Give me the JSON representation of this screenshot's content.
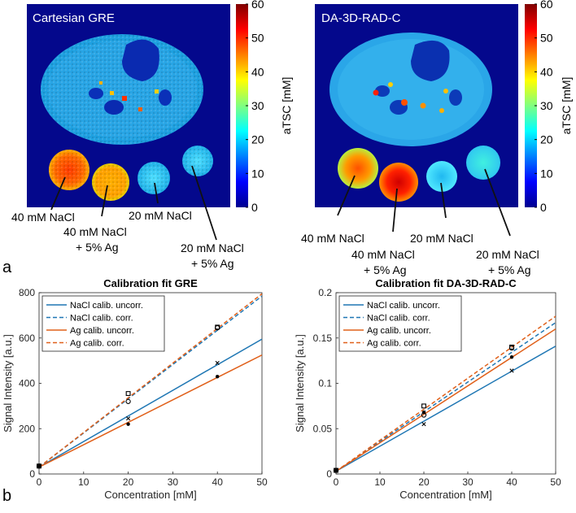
{
  "panel_a": {
    "label": "a",
    "images": [
      {
        "title": "Cartesian GRE",
        "colorbar": {
          "ticks": [
            "0",
            "10",
            "20",
            "30",
            "40",
            "50",
            "60"
          ],
          "label": "aTSC [mM]"
        },
        "phantom_labels": [
          "40 mM NaCl",
          "40 mM NaCl",
          "+ 5% Ag",
          "20 mM NaCl",
          "20 mM NaCl",
          "+ 5% Ag"
        ]
      },
      {
        "title": "DA-3D-RAD-C",
        "colorbar": {
          "ticks": [
            "0",
            "10",
            "20",
            "30",
            "40",
            "50",
            "60"
          ],
          "label": "aTSC [mM]"
        },
        "phantom_labels": [
          "40 mM NaCl",
          "40 mM NaCl",
          "+ 5% Ag",
          "20 mM NaCl",
          "20 mM NaCl",
          "+ 5% Ag"
        ]
      }
    ]
  },
  "panel_b": {
    "label": "b"
  },
  "colors": {
    "nacl": "#1f77b4",
    "ag": "#e0601a",
    "axis": "#262626"
  },
  "chart_data": [
    {
      "type": "line",
      "title": "Calibration fit GRE",
      "xlabel": "Concentration [mM]",
      "ylabel": "Signal Intensity [a.u.]",
      "xlim": [
        0,
        50
      ],
      "ylim": [
        0,
        800
      ],
      "xticks": [
        "0",
        "10",
        "20",
        "30",
        "40",
        "50"
      ],
      "yticks": [
        "0",
        "200",
        "400",
        "600",
        "800"
      ],
      "legend_position": "top-left",
      "series": [
        {
          "name": "NaCl calib. uncorr.",
          "style": "solid",
          "color": "nacl",
          "x": [
            0,
            50
          ],
          "y": [
            30,
            595
          ]
        },
        {
          "name": "NaCl calib. corr.",
          "style": "dashed",
          "color": "nacl",
          "x": [
            0,
            50
          ],
          "y": [
            30,
            785
          ]
        },
        {
          "name": "Ag calib. uncorr.",
          "style": "solid",
          "color": "ag",
          "x": [
            0,
            50
          ],
          "y": [
            30,
            525
          ]
        },
        {
          "name": "Ag calib. corr.",
          "style": "dashed",
          "color": "ag",
          "x": [
            0,
            50
          ],
          "y": [
            30,
            795
          ]
        }
      ],
      "points": [
        {
          "marker": "x",
          "x": 0,
          "y": 35
        },
        {
          "marker": "o",
          "x": 0,
          "y": 35
        },
        {
          "marker": "s",
          "x": 0,
          "y": 35
        },
        {
          "marker": "d",
          "x": 0,
          "y": 35
        },
        {
          "marker": "x",
          "x": 20,
          "y": 245
        },
        {
          "marker": "d",
          "x": 20,
          "y": 220
        },
        {
          "marker": "o",
          "x": 20,
          "y": 320
        },
        {
          "marker": "s",
          "x": 20,
          "y": 355
        },
        {
          "marker": "x",
          "x": 40,
          "y": 490
        },
        {
          "marker": "d",
          "x": 40,
          "y": 430
        },
        {
          "marker": "o",
          "x": 40,
          "y": 645
        },
        {
          "marker": "s",
          "x": 40,
          "y": 648
        }
      ]
    },
    {
      "type": "line",
      "title": "Calibration fit DA-3D-RAD-C",
      "xlabel": "Concentration [mM]",
      "ylabel": "Signal Intensity [a.u.]",
      "xlim": [
        0,
        50
      ],
      "ylim": [
        0,
        0.2
      ],
      "xticks": [
        "0",
        "10",
        "20",
        "30",
        "40",
        "50"
      ],
      "yticks": [
        "0",
        "0.05",
        "0.1",
        "0.15",
        "0.2"
      ],
      "legend_position": "top-left",
      "series": [
        {
          "name": "NaCl calib. uncorr.",
          "style": "solid",
          "color": "nacl",
          "x": [
            0,
            50
          ],
          "y": [
            0.003,
            0.141
          ]
        },
        {
          "name": "NaCl calib. corr.",
          "style": "dashed",
          "color": "nacl",
          "x": [
            0,
            50
          ],
          "y": [
            0.003,
            0.167
          ]
        },
        {
          "name": "Ag calib. uncorr.",
          "style": "solid",
          "color": "ag",
          "x": [
            0,
            50
          ],
          "y": [
            0.003,
            0.16
          ]
        },
        {
          "name": "Ag calib. corr.",
          "style": "dashed",
          "color": "ag",
          "x": [
            0,
            50
          ],
          "y": [
            0.003,
            0.174
          ]
        }
      ],
      "points": [
        {
          "marker": "x",
          "x": 0,
          "y": 0.004
        },
        {
          "marker": "o",
          "x": 0,
          "y": 0.004
        },
        {
          "marker": "s",
          "x": 0,
          "y": 0.004
        },
        {
          "marker": "d",
          "x": 0,
          "y": 0.004
        },
        {
          "marker": "x",
          "x": 20,
          "y": 0.055
        },
        {
          "marker": "d",
          "x": 20,
          "y": 0.068
        },
        {
          "marker": "o",
          "x": 20,
          "y": 0.065
        },
        {
          "marker": "s",
          "x": 20,
          "y": 0.075
        },
        {
          "marker": "x",
          "x": 40,
          "y": 0.114
        },
        {
          "marker": "d",
          "x": 40,
          "y": 0.129
        },
        {
          "marker": "o",
          "x": 40,
          "y": 0.139
        },
        {
          "marker": "s",
          "x": 40,
          "y": 0.14
        }
      ]
    }
  ]
}
